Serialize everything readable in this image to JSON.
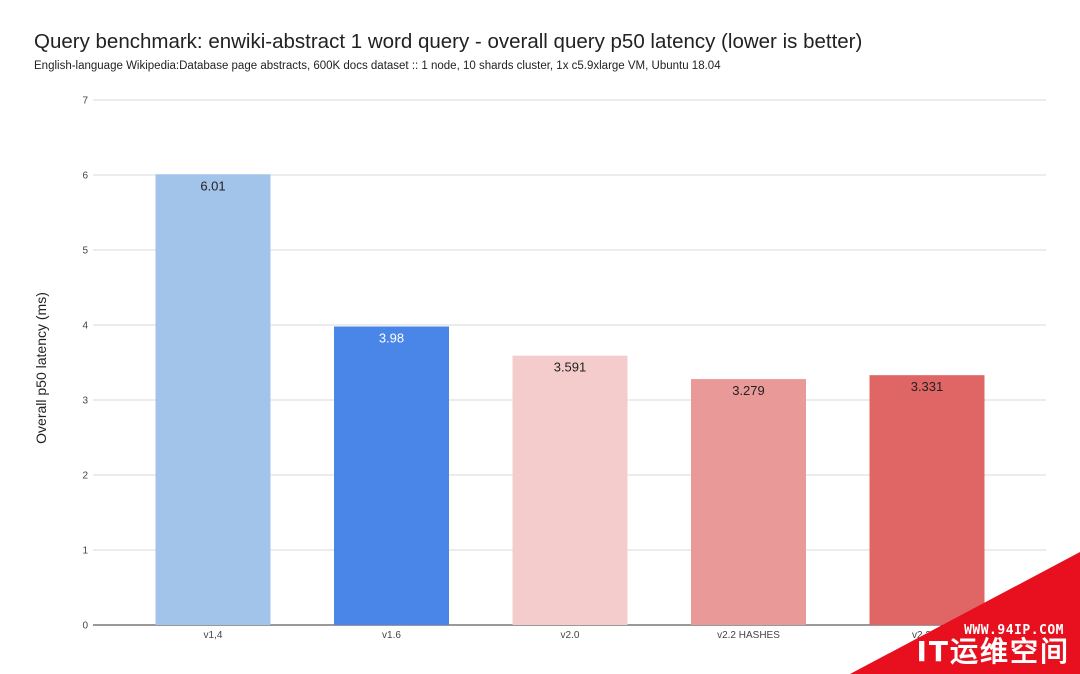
{
  "chart_data": {
    "type": "bar",
    "title": "Query benchmark: enwiki-abstract 1 word query - overall query p50 latency (lower is better)",
    "subtitle": "English-language Wikipedia:Database page abstracts, 600K docs dataset :: 1 node, 10 shards cluster, 1x c5.9xlarge VM, Ubuntu 18.04",
    "xlabel": "",
    "ylabel": "Overall p50 latency (ms)",
    "ylim": [
      0,
      7
    ],
    "yticks": [
      "0",
      "1",
      "2",
      "3",
      "4",
      "5",
      "6",
      "7"
    ],
    "grid": true,
    "categories": [
      "v1,4",
      "v1.6",
      "v2.0",
      "v2.2 HASHES",
      "v2.2 ..."
    ],
    "values": [
      6.01,
      3.98,
      3.591,
      3.279,
      3.331
    ],
    "value_labels": [
      "6.01",
      "3.98",
      "3.591",
      "3.279",
      "3.331"
    ],
    "bar_colors": [
      "#a3c4ea",
      "#4a86e8",
      "#f4cccc",
      "#ea9999",
      "#e06666"
    ],
    "label_colors": [
      "#222222",
      "#ffffff",
      "#222222",
      "#222222",
      "#222222"
    ]
  },
  "watermark": {
    "url": "WWW.94IP.COM",
    "brand": "IT运维空间",
    "color": "#e8101e"
  }
}
